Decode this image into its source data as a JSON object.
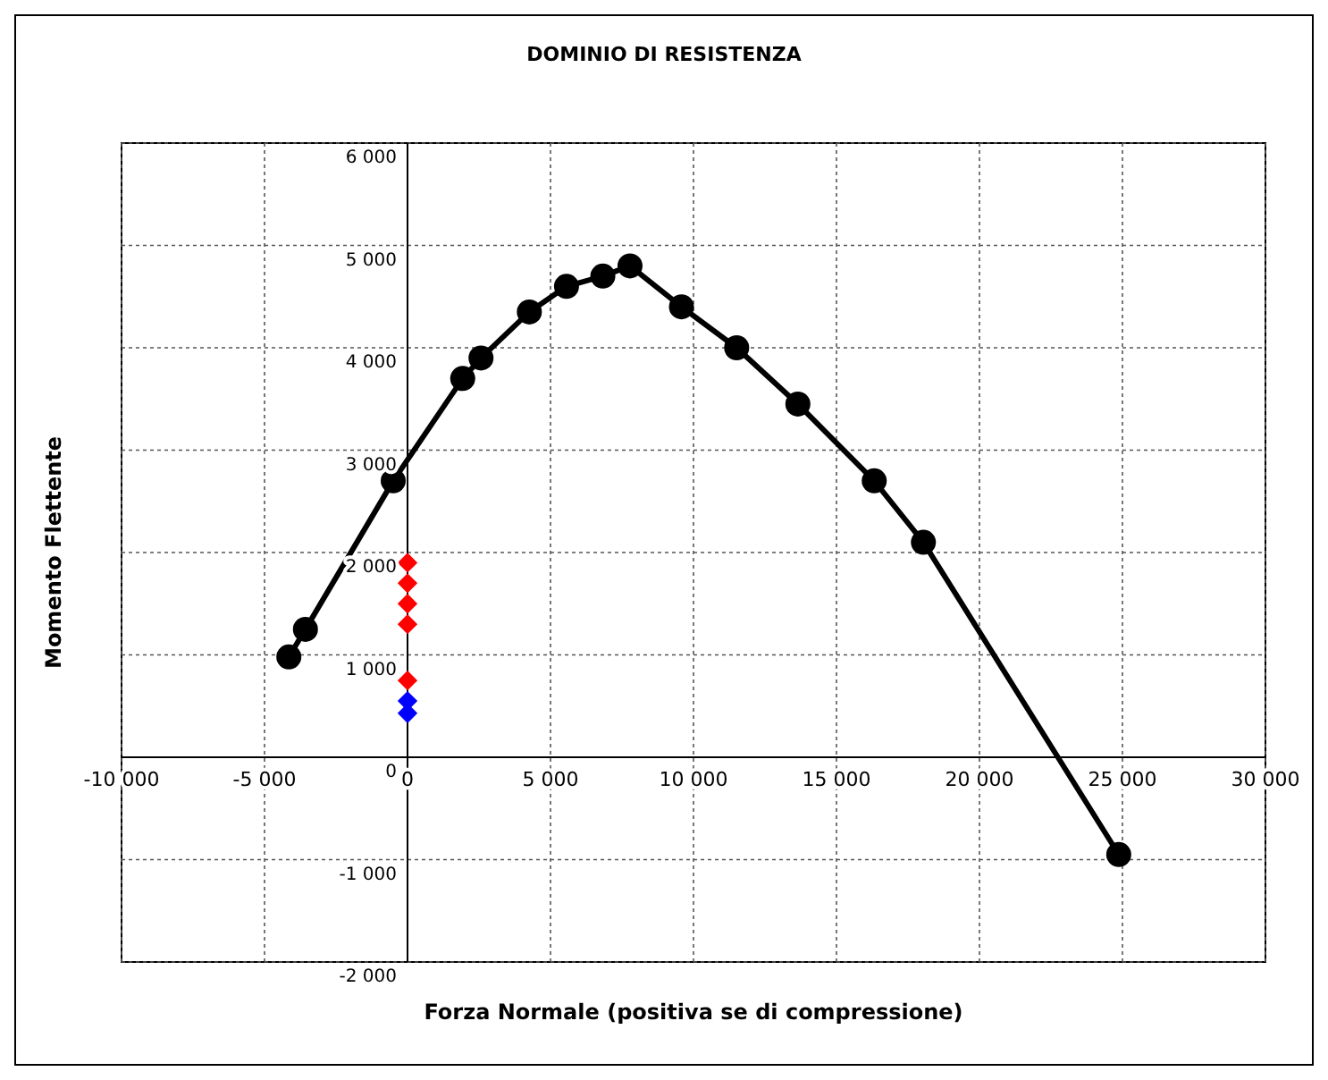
{
  "chart_data": {
    "type": "scatter",
    "title": "DOMINIO DI RESISTENZA",
    "xlabel": "Forza Normale (positiva se di compressione)",
    "ylabel": "Momento Flettente",
    "xlim": [
      -10000,
      30000
    ],
    "ylim": [
      -2000,
      6000
    ],
    "xticks": [
      {
        "value": -10000,
        "label": "-10 000"
      },
      {
        "value": -5000,
        "label": "-5 000"
      },
      0,
      {
        "value": 5000,
        "label": "5 000"
      },
      {
        "value": 10000,
        "label": "10 000"
      },
      {
        "value": 15000,
        "label": "15 000"
      },
      {
        "value": 20000,
        "label": "20 000"
      },
      {
        "value": 25000,
        "label": "25 000"
      },
      {
        "value": 30000,
        "label": "30 000"
      }
    ],
    "yticks": [
      {
        "value": -2000,
        "label": "-2 000"
      },
      {
        "value": -1000,
        "label": "-1 000"
      },
      0,
      {
        "value": 1000,
        "label": "1 000"
      },
      {
        "value": 2000,
        "label": "2 000"
      },
      {
        "value": 3000,
        "label": "3 000"
      },
      {
        "value": 4000,
        "label": "4 000"
      },
      {
        "value": 5000,
        "label": "5 000"
      },
      {
        "value": 6000,
        "label": "6 000"
      }
    ],
    "grid": true,
    "legend": false,
    "series": [
      {
        "type": "line",
        "color": "#000000",
        "marker": "circle",
        "line_style": "solid",
        "x": [
          -4150,
          -3570,
          -500,
          1930,
          2570,
          4260,
          5560,
          6830,
          7780,
          9580,
          11510,
          13650,
          16320,
          18040,
          24870
        ],
        "values": [
          980,
          1250,
          2700,
          3700,
          3900,
          4350,
          4600,
          4700,
          4800,
          4400,
          4000,
          3450,
          2700,
          2100,
          -950
        ]
      },
      {
        "color": "#ff0000",
        "marker": "diamond",
        "x": [
          0,
          0,
          0,
          0,
          0
        ],
        "values": [
          1300,
          1500,
          1700,
          1900,
          750
        ]
      },
      {
        "color": "#0000ff",
        "marker": "diamond",
        "x": [
          0,
          0
        ],
        "values": [
          550,
          430
        ]
      }
    ]
  }
}
